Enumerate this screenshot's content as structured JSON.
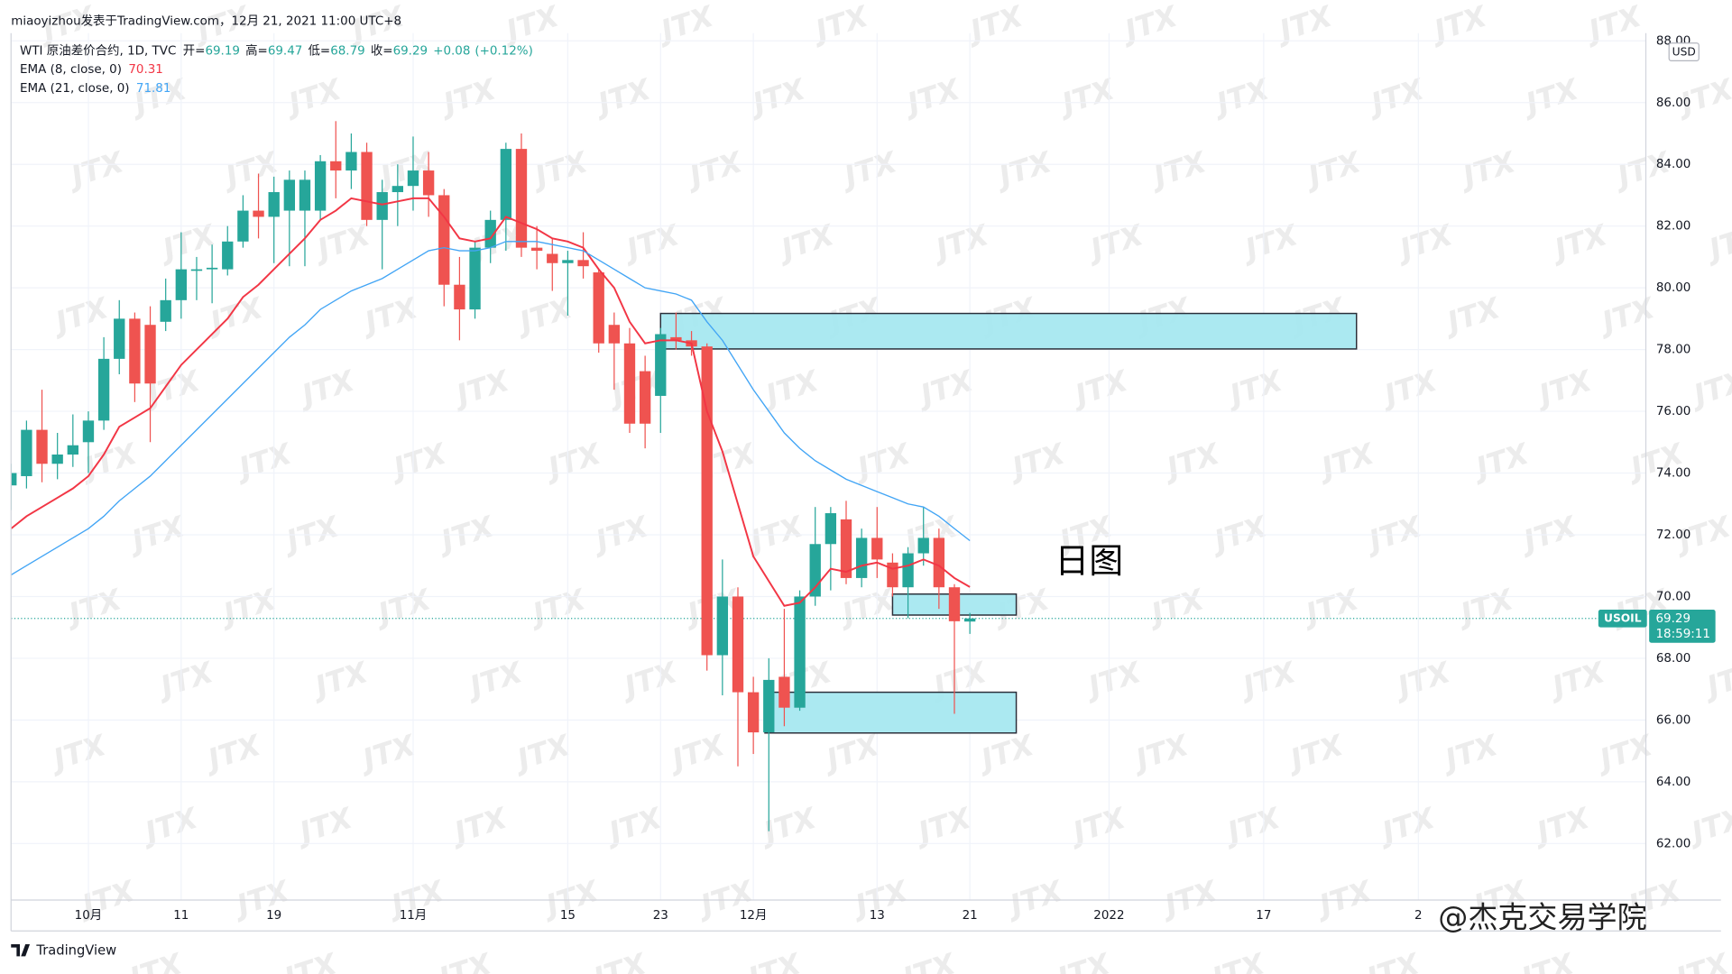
{
  "header": {
    "publisher": "miaoyizhou发表于TradingView.com，12月 21, 2021 11:00 UTC+8"
  },
  "chart_data": {
    "type": "candlestick",
    "symbol_line": "WTI 原油差价合约, 1D, TVC",
    "ohlc_labels": [
      "开=",
      "高=",
      "低=",
      "收="
    ],
    "change": {
      "value": 0.08,
      "label": "+0.08"
    },
    "change_pct": {
      "value": 0.12,
      "label": "(+0.12%)"
    },
    "up_color": "#26a69a",
    "down_color": "#ef5350",
    "candles": [
      {
        "open": 73.6,
        "high": 74.3,
        "low": 72.8,
        "close": 74.0
      },
      {
        "open": 73.9,
        "high": 75.7,
        "low": 73.5,
        "close": 75.4
      },
      {
        "open": 75.4,
        "high": 76.7,
        "low": 73.7,
        "close": 74.3
      },
      {
        "open": 74.3,
        "high": 75.3,
        "low": 73.8,
        "close": 74.6
      },
      {
        "open": 74.6,
        "high": 75.9,
        "low": 74.2,
        "close": 74.9
      },
      {
        "open": 75.0,
        "high": 76.0,
        "low": 74.0,
        "close": 75.7
      },
      {
        "open": 75.7,
        "high": 78.4,
        "low": 75.4,
        "close": 77.7
      },
      {
        "open": 77.7,
        "high": 79.6,
        "low": 77.2,
        "close": 79.0
      },
      {
        "open": 79.0,
        "high": 79.2,
        "low": 76.3,
        "close": 76.9
      },
      {
        "open": 78.8,
        "high": 79.4,
        "low": 75.0,
        "close": 76.9
      },
      {
        "open": 78.9,
        "high": 80.3,
        "low": 78.6,
        "close": 79.6
      },
      {
        "open": 79.6,
        "high": 81.8,
        "low": 79.0,
        "close": 80.6
      },
      {
        "open": 80.55,
        "high": 81.0,
        "low": 79.6,
        "close": 80.6
      },
      {
        "open": 80.6,
        "high": 81.4,
        "low": 79.5,
        "close": 80.65
      },
      {
        "open": 80.6,
        "high": 82.0,
        "low": 80.4,
        "close": 81.5
      },
      {
        "open": 81.5,
        "high": 83.0,
        "low": 81.3,
        "close": 82.5
      },
      {
        "open": 82.5,
        "high": 83.7,
        "low": 81.6,
        "close": 82.3
      },
      {
        "open": 82.3,
        "high": 83.6,
        "low": 80.8,
        "close": 83.1
      },
      {
        "open": 82.5,
        "high": 83.8,
        "low": 80.7,
        "close": 83.5
      },
      {
        "open": 82.5,
        "high": 83.8,
        "low": 80.7,
        "close": 83.5
      },
      {
        "open": 82.5,
        "high": 84.3,
        "low": 82.2,
        "close": 84.1
      },
      {
        "open": 84.1,
        "high": 85.4,
        "low": 82.9,
        "close": 83.8
      },
      {
        "open": 83.8,
        "high": 85.0,
        "low": 83.2,
        "close": 84.4
      },
      {
        "open": 84.4,
        "high": 84.7,
        "low": 82.0,
        "close": 82.2
      },
      {
        "open": 82.2,
        "high": 83.5,
        "low": 80.6,
        "close": 83.1
      },
      {
        "open": 83.1,
        "high": 84.0,
        "low": 82.0,
        "close": 83.3
      },
      {
        "open": 83.3,
        "high": 84.9,
        "low": 82.5,
        "close": 83.8
      },
      {
        "open": 83.8,
        "high": 84.4,
        "low": 82.3,
        "close": 83.0
      },
      {
        "open": 83.0,
        "high": 83.2,
        "low": 79.4,
        "close": 80.1
      },
      {
        "open": 80.1,
        "high": 81.0,
        "low": 78.3,
        "close": 79.3
      },
      {
        "open": 79.3,
        "high": 81.5,
        "low": 79.0,
        "close": 81.3
      },
      {
        "open": 81.3,
        "high": 82.5,
        "low": 80.8,
        "close": 82.2
      },
      {
        "open": 82.2,
        "high": 84.7,
        "low": 81.2,
        "close": 84.5
      },
      {
        "open": 84.5,
        "high": 85.0,
        "low": 81.0,
        "close": 81.3
      },
      {
        "open": 81.3,
        "high": 82.0,
        "low": 80.6,
        "close": 81.2
      },
      {
        "open": 81.1,
        "high": 81.6,
        "low": 79.9,
        "close": 80.8
      },
      {
        "open": 80.8,
        "high": 81.2,
        "low": 79.1,
        "close": 80.9
      },
      {
        "open": 80.9,
        "high": 81.8,
        "low": 80.3,
        "close": 80.7
      },
      {
        "open": 80.5,
        "high": 80.6,
        "low": 77.9,
        "close": 78.2
      },
      {
        "open": 78.8,
        "high": 79.2,
        "low": 76.7,
        "close": 78.2
      },
      {
        "open": 78.2,
        "high": 78.7,
        "low": 75.3,
        "close": 75.6
      },
      {
        "open": 77.3,
        "high": 77.8,
        "low": 74.8,
        "close": 75.6
      },
      {
        "open": 76.5,
        "high": 78.7,
        "low": 75.3,
        "close": 78.5
      },
      {
        "open": 78.4,
        "high": 79.2,
        "low": 78.0,
        "close": 78.3
      },
      {
        "open": 78.3,
        "high": 78.6,
        "low": 77.8,
        "close": 78.1
      },
      {
        "open": 78.1,
        "high": 78.2,
        "low": 67.6,
        "close": 68.1
      },
      {
        "open": 68.1,
        "high": 71.2,
        "low": 66.8,
        "close": 70.0
      },
      {
        "open": 70.0,
        "high": 70.3,
        "low": 64.5,
        "close": 66.9
      },
      {
        "open": 66.9,
        "high": 67.4,
        "low": 64.9,
        "close": 65.6
      },
      {
        "open": 65.6,
        "high": 68.0,
        "low": 62.4,
        "close": 67.3
      },
      {
        "open": 67.4,
        "high": 69.6,
        "low": 65.8,
        "close": 66.4
      },
      {
        "open": 66.4,
        "high": 70.2,
        "low": 66.3,
        "close": 70.0
      },
      {
        "open": 70.0,
        "high": 72.9,
        "low": 69.7,
        "close": 71.7
      },
      {
        "open": 71.7,
        "high": 72.9,
        "low": 70.2,
        "close": 72.7
      },
      {
        "open": 72.5,
        "high": 73.1,
        "low": 70.4,
        "close": 70.6
      },
      {
        "open": 70.6,
        "high": 72.2,
        "low": 70.3,
        "close": 71.9
      },
      {
        "open": 71.9,
        "high": 72.9,
        "low": 70.6,
        "close": 71.2
      },
      {
        "open": 71.1,
        "high": 71.4,
        "low": 70.0,
        "close": 70.3
      },
      {
        "open": 70.3,
        "high": 71.6,
        "low": 69.3,
        "close": 71.4
      },
      {
        "open": 71.4,
        "high": 72.9,
        "low": 71.0,
        "close": 71.9
      },
      {
        "open": 71.9,
        "high": 72.2,
        "low": 69.6,
        "close": 70.3
      },
      {
        "open": 70.3,
        "high": 70.4,
        "low": 66.2,
        "close": 69.2
      },
      {
        "open": 69.19,
        "high": 69.47,
        "low": 68.79,
        "close": 69.29
      }
    ],
    "series": [
      {
        "name": "EMA (8, close, 0)",
        "color": "#f23645",
        "values": [
          72.2,
          72.6,
          72.9,
          73.2,
          73.5,
          73.9,
          74.6,
          75.5,
          75.8,
          76.1,
          76.8,
          77.5,
          78.0,
          78.5,
          79.0,
          79.7,
          80.1,
          80.6,
          81.1,
          81.6,
          82.2,
          82.5,
          82.9,
          82.8,
          82.7,
          82.8,
          82.9,
          82.9,
          82.3,
          81.6,
          81.5,
          81.6,
          82.3,
          82.1,
          81.9,
          81.6,
          81.5,
          81.3,
          80.6,
          80.0,
          78.9,
          78.2,
          78.3,
          78.3,
          78.2,
          76.0,
          74.7,
          73.0,
          71.3,
          70.5,
          69.7,
          69.8,
          70.3,
          70.9,
          70.8,
          71.0,
          71.1,
          70.9,
          71.0,
          71.2,
          71.0,
          70.6,
          70.31
        ]
      },
      {
        "name": "EMA (21, close, 0)",
        "color": "#42a5f5",
        "values": [
          70.7,
          71.0,
          71.3,
          71.6,
          71.9,
          72.2,
          72.6,
          73.1,
          73.5,
          73.9,
          74.4,
          74.9,
          75.4,
          75.9,
          76.4,
          76.9,
          77.4,
          77.9,
          78.4,
          78.8,
          79.3,
          79.6,
          79.9,
          80.1,
          80.3,
          80.6,
          80.9,
          81.2,
          81.3,
          81.2,
          81.2,
          81.3,
          81.5,
          81.5,
          81.5,
          81.4,
          81.3,
          81.2,
          80.9,
          80.6,
          80.3,
          80.0,
          79.9,
          79.8,
          79.6,
          78.9,
          78.3,
          77.5,
          76.7,
          76.0,
          75.3,
          74.8,
          74.4,
          74.1,
          73.8,
          73.6,
          73.4,
          73.2,
          73.0,
          72.9,
          72.6,
          72.2,
          71.81
        ]
      }
    ],
    "zones": [
      {
        "start": 42,
        "end": 87,
        "high": 79.17,
        "low": 78.02
      },
      {
        "start": 57,
        "end": 65,
        "high": 70.08,
        "low": 69.4
      },
      {
        "start": 48.75,
        "end": 65,
        "high": 66.9,
        "low": 65.58
      }
    ],
    "zone_color": "#a6e8f0",
    "annotation": "日图",
    "last_price": {
      "symbol": "USOIL",
      "value": 69.29,
      "countdown": "18:59:11"
    },
    "currency": "USD",
    "ylim": [
      60.17,
      88.25
    ],
    "yticks": [
      {
        "value": 62,
        "label": "62.00"
      },
      {
        "value": 64,
        "label": "64.00"
      },
      {
        "value": 66,
        "label": "66.00"
      },
      {
        "value": 68,
        "label": "68.00"
      },
      {
        "value": 70,
        "label": "70.00"
      },
      {
        "value": 72,
        "label": "72.00"
      },
      {
        "value": 74,
        "label": "74.00"
      },
      {
        "value": 76,
        "label": "76.00"
      },
      {
        "value": 78,
        "label": "78.00"
      },
      {
        "value": 80,
        "label": "80.00"
      },
      {
        "value": 82,
        "label": "82.00"
      },
      {
        "value": 84,
        "label": "84.00"
      },
      {
        "value": 86,
        "label": "86.00"
      },
      {
        "value": 88,
        "label": "88.00"
      }
    ],
    "xlim": [
      0,
      105.71
    ],
    "xticks": [
      {
        "value": 5,
        "label": "10月"
      },
      {
        "value": 11,
        "label": "11"
      },
      {
        "value": 17,
        "label": "19"
      },
      {
        "value": 26,
        "label": "11月"
      },
      {
        "value": 36,
        "label": "15"
      },
      {
        "value": 42,
        "label": "23"
      },
      {
        "value": 48,
        "label": "12月"
      },
      {
        "value": 56,
        "label": "13"
      },
      {
        "value": 62,
        "label": "21"
      },
      {
        "value": 71,
        "label": "2022"
      },
      {
        "value": 81,
        "label": "17"
      },
      {
        "value": 91,
        "label": "2"
      }
    ],
    "grid": true
  },
  "footer": {
    "logo": "TradingView",
    "watermark": "@杰克交易学院",
    "brand": "JTX"
  }
}
